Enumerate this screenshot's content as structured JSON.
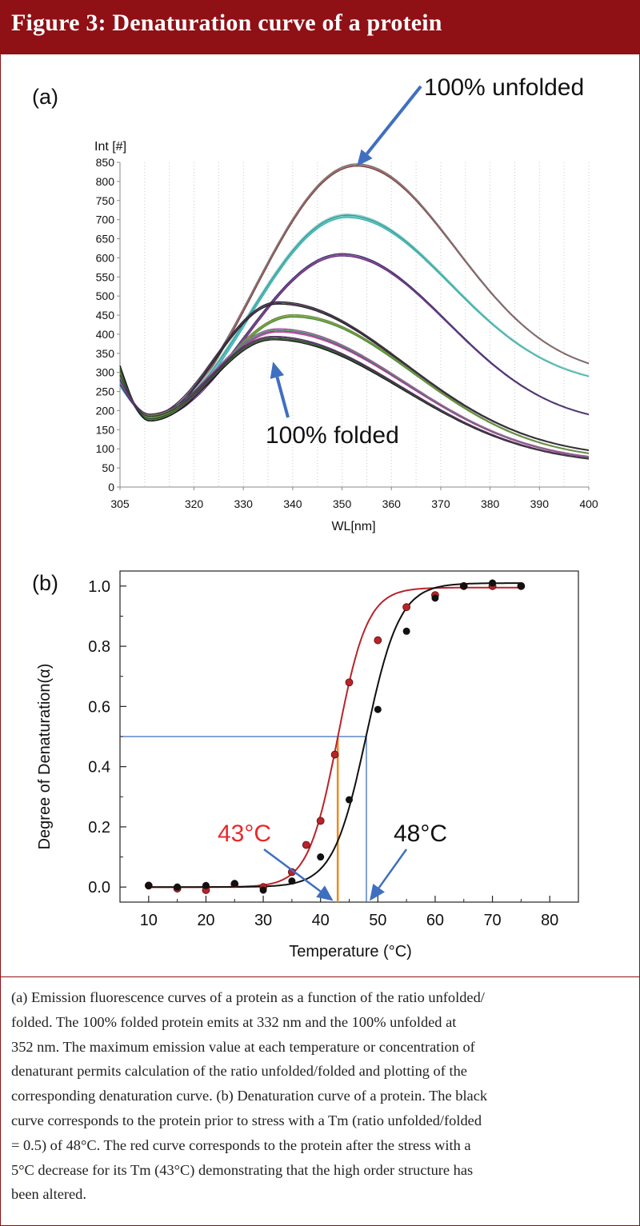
{
  "header": {
    "title": "Figure 3: Denaturation curve of a protein"
  },
  "caption": {
    "lines": [
      "(a) Emission fluorescence curves of a protein as a function of the ratio unfolded/",
      "folded. The 100% folded protein emits at 332 nm and the 100% unfolded at",
      "352 nm. The maximum emission value at each temperature or concentration of",
      "denaturant permits calculation of the ratio unfolded/folded and plotting of the",
      "corresponding denaturation curve. (b) Denaturation curve of a protein. The black",
      "curve corresponds to the protein prior to stress with a Tm (ratio unfolded/folded",
      "= 0.5) of 48°C. The red curve corresponds to the protein after the stress with a",
      "5°C decrease for its Tm (43°C) demonstrating that the high order structure has",
      "been altered."
    ]
  },
  "chart_data": [
    {
      "type": "line",
      "panel_label": "(a)",
      "xlabel": "WL[nm]",
      "ylabel": "Int [#]",
      "xlim": [
        305,
        400
      ],
      "ylim": [
        0,
        850
      ],
      "xticks": [
        305,
        320,
        330,
        340,
        350,
        360,
        370,
        380,
        390,
        400
      ],
      "yticks": [
        0,
        50,
        100,
        150,
        200,
        250,
        300,
        350,
        400,
        450,
        500,
        550,
        600,
        650,
        700,
        750,
        800,
        850
      ],
      "grid": "vertical dotted",
      "annotations": [
        {
          "text": "100% unfolded",
          "arrow_to": [
            353,
            848
          ]
        },
        {
          "text": "100% folded",
          "arrow_to": [
            336,
            345
          ]
        }
      ],
      "series_groups": [
        {
          "peak_x": 353,
          "peak_y": 843,
          "copies": 3,
          "colors": [
            "#6b4a3c",
            "#b05a6a",
            "#777777"
          ]
        },
        {
          "peak_x": 351,
          "peak_y": 710,
          "copies": 4,
          "colors": [
            "#2ab3a8",
            "#5bc0c8",
            "#3a8f8a",
            "#88d0c8"
          ]
        },
        {
          "peak_x": 350,
          "peak_y": 608,
          "copies": 3,
          "colors": [
            "#5b2e7a",
            "#8a3a8a",
            "#3a3a6a"
          ]
        },
        {
          "peak_x": 337,
          "peak_y": 482,
          "copies": 3,
          "colors": [
            "#222222",
            "#4a2a5a",
            "#333333"
          ]
        },
        {
          "peak_x": 340,
          "peak_y": 448,
          "copies": 3,
          "colors": [
            "#3a8a3a",
            "#7a9a2a",
            "#6a8a4a"
          ]
        },
        {
          "peak_x": 337,
          "peak_y": 410,
          "copies": 4,
          "colors": [
            "#c04a8a",
            "#8a3aa0",
            "#3a9a5a",
            "#a05a9a"
          ]
        },
        {
          "peak_x": 336,
          "peak_y": 390,
          "copies": 4,
          "colors": [
            "#111111",
            "#2a5a2a",
            "#3a3a3a",
            "#5a2a6a"
          ]
        }
      ]
    },
    {
      "type": "scatter",
      "panel_label": "(b)",
      "xlabel": "Temperature (°C)",
      "ylabel": "Degree of Denaturation(α)",
      "xlim": [
        5,
        85
      ],
      "ylim": [
        -0.05,
        1.05
      ],
      "xticks": [
        10,
        20,
        30,
        40,
        50,
        60,
        70,
        80
      ],
      "yticks": [
        0.0,
        0.2,
        0.4,
        0.6,
        0.8,
        1.0
      ],
      "series": [
        {
          "color": "#b8242a",
          "tm": 43,
          "points": [
            [
              10,
              0.005
            ],
            [
              15,
              -0.005
            ],
            [
              20,
              -0.01
            ],
            [
              25,
              0.01
            ],
            [
              30,
              0.0
            ],
            [
              35,
              0.05
            ],
            [
              37.5,
              0.14
            ],
            [
              40,
              0.22
            ],
            [
              42.5,
              0.44
            ],
            [
              45,
              0.68
            ],
            [
              50,
              0.82
            ],
            [
              55,
              0.93
            ],
            [
              60,
              0.97
            ],
            [
              65,
              1.0
            ],
            [
              70,
              1.0
            ],
            [
              75,
              1.0
            ]
          ]
        },
        {
          "color": "#111111",
          "tm": 48,
          "points": [
            [
              10,
              0.005
            ],
            [
              15,
              0.0
            ],
            [
              20,
              0.005
            ],
            [
              25,
              0.012
            ],
            [
              30,
              -0.01
            ],
            [
              35,
              0.02
            ],
            [
              40,
              0.1
            ],
            [
              45,
              0.29
            ],
            [
              50,
              0.59
            ],
            [
              55,
              0.85
            ],
            [
              60,
              0.96
            ],
            [
              65,
              1.0
            ],
            [
              70,
              1.01
            ],
            [
              75,
              1.0
            ]
          ]
        }
      ],
      "reference_line_y": 0.5,
      "annotations": [
        {
          "text": "43°C",
          "color": "#e8282a",
          "arrow_to": [
            42.5,
            -0.03
          ]
        },
        {
          "text": "48°C",
          "color": "#111111",
          "arrow_to": [
            48,
            -0.03
          ]
        }
      ]
    }
  ]
}
